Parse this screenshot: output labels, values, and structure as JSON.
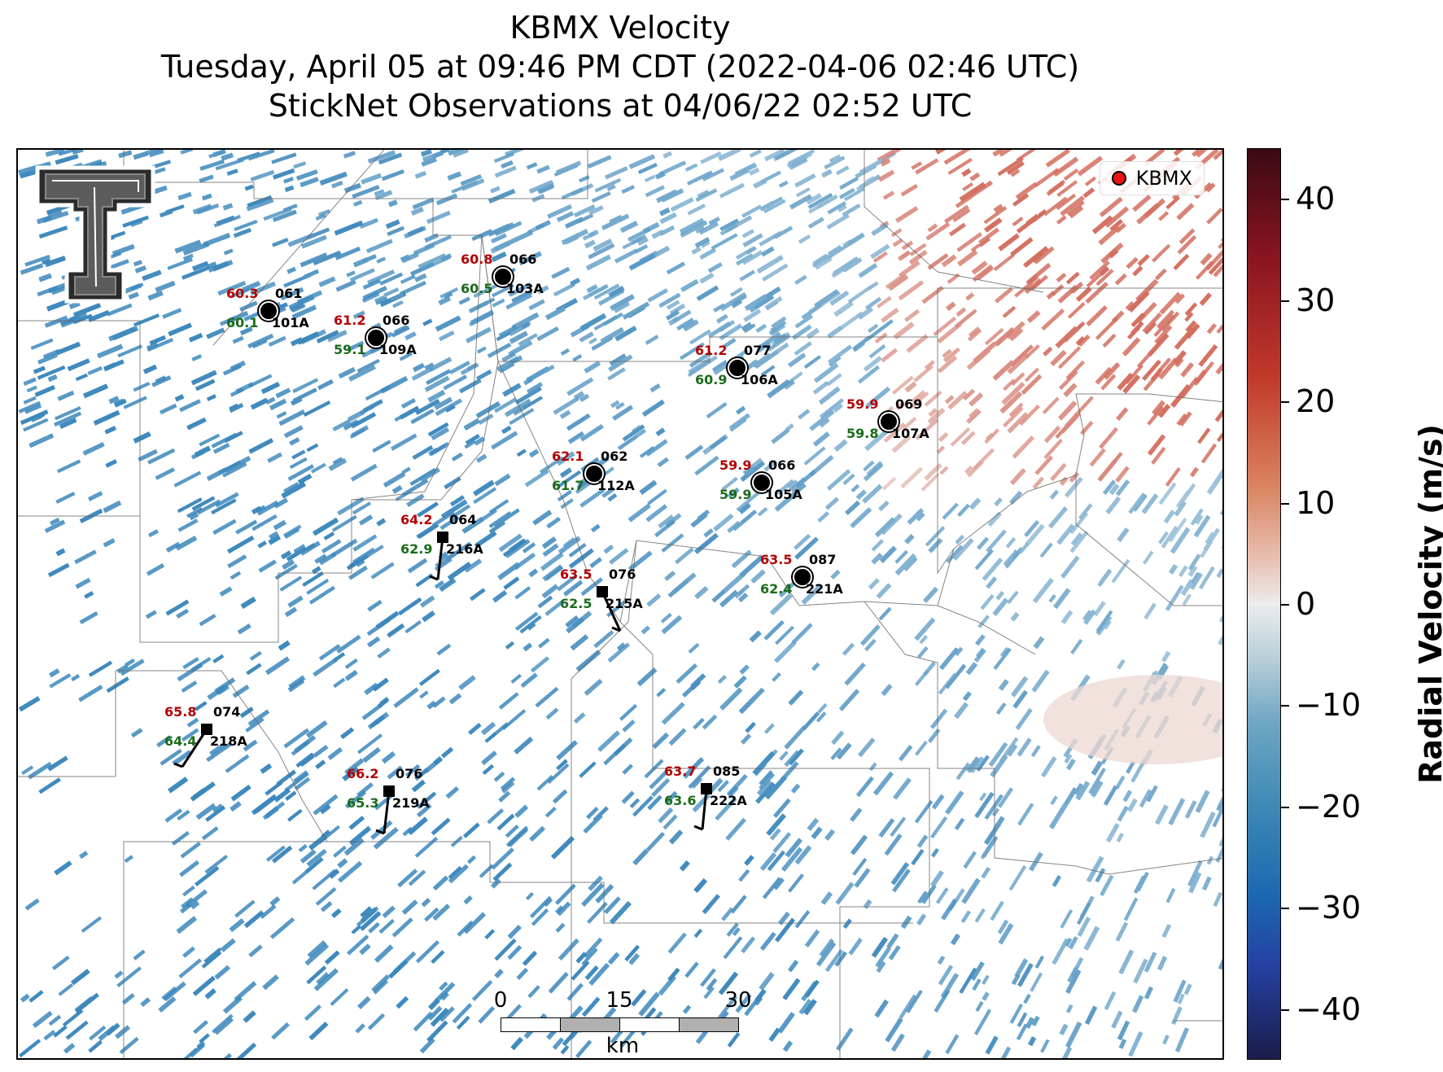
{
  "title": {
    "line1": "KBMX Velocity",
    "line2": "Tuesday, April 05 at 09:46 PM CDT (2022-04-06 02:46 UTC)",
    "line3": "StickNet Observations at 04/06/22 02:52 UTC"
  },
  "legend": {
    "label": "KBMX",
    "marker_color": "#ee1111"
  },
  "logo": {
    "text": "TT",
    "icon": "texas-tech-logo-icon"
  },
  "colorbar": {
    "label": "Radial Velocity (m/s)",
    "ticks": [
      "40",
      "30",
      "20",
      "10",
      "0",
      "−10",
      "−20",
      "−30",
      "−40"
    ],
    "range": [
      -45,
      45
    ]
  },
  "scalebar": {
    "labels": [
      "0",
      "15",
      "30"
    ],
    "unit": "km"
  },
  "stations": [
    {
      "id": "101A",
      "gust": "60.3",
      "speed": "60.1",
      "dir": "061",
      "marker": "circle"
    },
    {
      "id": "109A",
      "gust": "61.2",
      "speed": "59.1",
      "dir": "066",
      "marker": "circle"
    },
    {
      "id": "103A",
      "gust": "60.8",
      "speed": "60.5",
      "dir": "066",
      "marker": "circle"
    },
    {
      "id": "106A",
      "gust": "61.2",
      "speed": "60.9",
      "dir": "077",
      "marker": "circle"
    },
    {
      "id": "107A",
      "gust": "59.9",
      "speed": "59.8",
      "dir": "069",
      "marker": "circle"
    },
    {
      "id": "112A",
      "gust": "62.1",
      "speed": "61.7",
      "dir": "062",
      "marker": "circle"
    },
    {
      "id": "105A",
      "gust": "59.9",
      "speed": "59.9",
      "dir": "066",
      "marker": "circle"
    },
    {
      "id": "216A",
      "gust": "64.2",
      "speed": "62.9",
      "dir": "064",
      "marker": "square"
    },
    {
      "id": "215A",
      "gust": "63.5",
      "speed": "62.5",
      "dir": "076",
      "marker": "square"
    },
    {
      "id": "221A",
      "gust": "63.5",
      "speed": "62.4",
      "dir": "087",
      "marker": "circle"
    },
    {
      "id": "218A",
      "gust": "65.8",
      "speed": "64.4",
      "dir": "074",
      "marker": "square"
    },
    {
      "id": "219A",
      "gust": "66.2",
      "speed": "65.3",
      "dir": "076",
      "marker": "square"
    },
    {
      "id": "222A",
      "gust": "63.7",
      "speed": "63.6",
      "dir": "085",
      "marker": "square"
    }
  ]
}
